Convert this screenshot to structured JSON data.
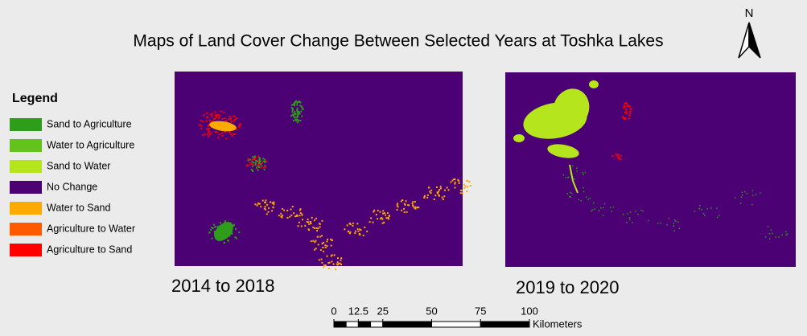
{
  "title": "Maps of Land Cover Change Between Selected Years at Toshka Lakes",
  "north": "N",
  "legend": {
    "title": "Legend",
    "items": [
      {
        "label": "Sand to Agriculture",
        "color": "#2e9e1a"
      },
      {
        "label": "Water to Agriculture",
        "color": "#63c21b"
      },
      {
        "label": "Sand to Water",
        "color": "#b5e61d"
      },
      {
        "label": "No Change",
        "color": "#4b0073"
      },
      {
        "label": "Water to Sand",
        "color": "#ffaa00"
      },
      {
        "label": "Agriculture to Water",
        "color": "#ff5a00"
      },
      {
        "label": "Agriculture to Sand",
        "color": "#ff0000"
      }
    ]
  },
  "maps": [
    {
      "label": "2014 to 2018"
    },
    {
      "label": "2019 to 2020"
    }
  ],
  "scale_bar": {
    "ticks": [
      0,
      12.5,
      25,
      50,
      75,
      100
    ],
    "unit": "Kilometers"
  }
}
